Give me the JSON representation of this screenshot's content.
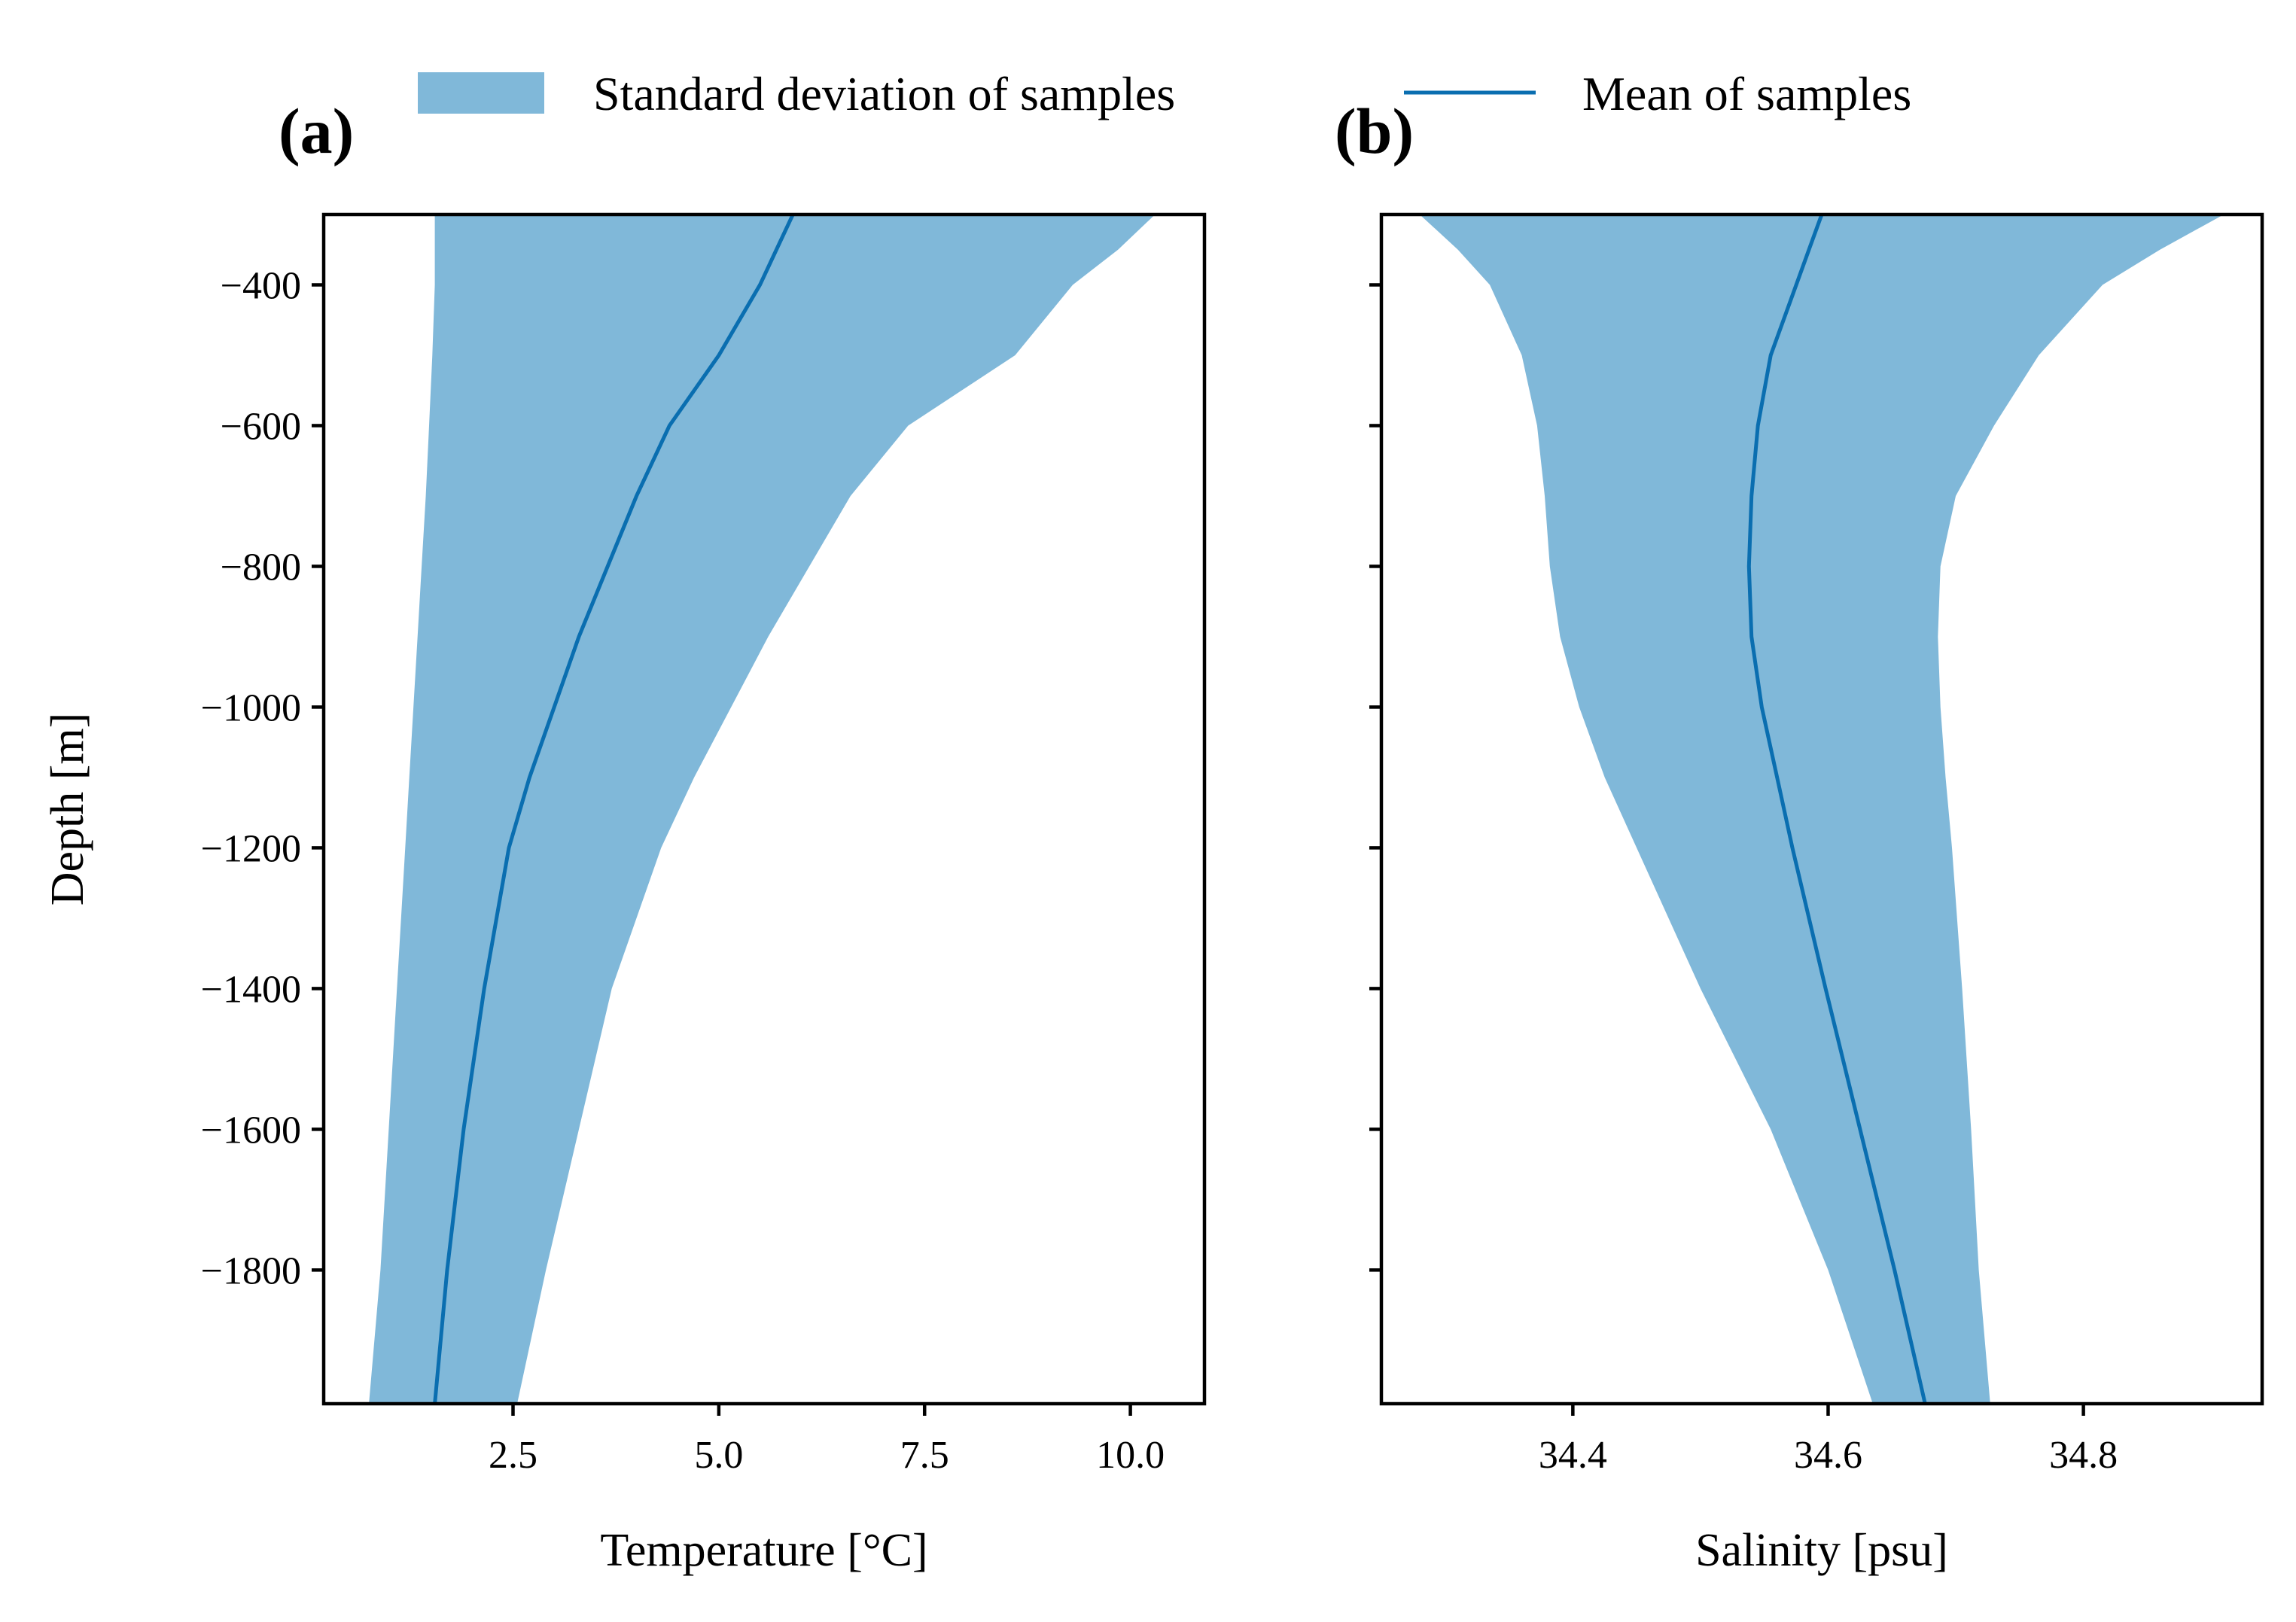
{
  "legend": {
    "std_label": "Standard deviation of samples",
    "mean_label": "Mean of samples"
  },
  "colors": {
    "band": "#80b8d9",
    "mean": "#0a6eb0"
  },
  "chart_data": [
    {
      "type": "area",
      "panel_label": "(a)",
      "xlabel": "Temperature [°C]",
      "ylabel": "Depth [m]",
      "xlim": [
        0.2,
        10.9
      ],
      "ylim": [
        -1990,
        -300
      ],
      "xticks": [
        2.5,
        5.0,
        7.5,
        10.0
      ],
      "xtick_labels": [
        "2.5",
        "5.0",
        "7.5",
        "10.0"
      ],
      "yticks": [
        -400,
        -600,
        -800,
        -1000,
        -1200,
        -1400,
        -1600,
        -1800
      ],
      "ytick_labels": [
        "−400",
        "−600",
        "−800",
        "−1000",
        "−1200",
        "−1400",
        "−1600",
        "−1800"
      ],
      "depth": [
        -300,
        -350,
        -400,
        -500,
        -600,
        -700,
        -800,
        -900,
        -1000,
        -1100,
        -1200,
        -1400,
        -1600,
        -1800,
        -1990
      ],
      "series": [
        {
          "name": "Mean of samples",
          "values": [
            5.9,
            5.7,
            5.5,
            5.0,
            4.4,
            4.0,
            3.65,
            3.3,
            3.0,
            2.7,
            2.45,
            2.15,
            1.9,
            1.7,
            1.55
          ]
        },
        {
          "name": "std_lower",
          "values": [
            1.55,
            1.55,
            1.55,
            1.52,
            1.48,
            1.44,
            1.39,
            1.34,
            1.29,
            1.24,
            1.19,
            1.09,
            0.99,
            0.89,
            0.75
          ]
        },
        {
          "name": "std_upper",
          "values": [
            10.3,
            9.85,
            9.3,
            8.6,
            7.3,
            6.6,
            6.1,
            5.6,
            5.15,
            4.7,
            4.3,
            3.7,
            3.3,
            2.9,
            2.55
          ]
        }
      ]
    },
    {
      "type": "area",
      "panel_label": "(b)",
      "xlabel": "Salinity [psu]",
      "ylabel": "",
      "xlim": [
        34.25,
        34.94
      ],
      "ylim": [
        -1990,
        -300
      ],
      "xticks": [
        34.4,
        34.6,
        34.8
      ],
      "xtick_labels": [
        "34.4",
        "34.6",
        "34.8"
      ],
      "yticks": [
        -400,
        -600,
        -800,
        -1000,
        -1200,
        -1400,
        -1600,
        -1800
      ],
      "ytick_labels": [],
      "depth": [
        -300,
        -350,
        -400,
        -500,
        -600,
        -700,
        -800,
        -900,
        -1000,
        -1100,
        -1200,
        -1400,
        -1600,
        -1800,
        -1990
      ],
      "series": [
        {
          "name": "Mean of samples",
          "values": [
            34.595,
            34.585,
            34.575,
            34.555,
            34.545,
            34.54,
            34.538,
            34.54,
            34.548,
            34.56,
            34.572,
            34.598,
            34.625,
            34.652,
            34.676
          ]
        },
        {
          "name": "std_lower",
          "values": [
            34.28,
            34.31,
            34.335,
            34.36,
            34.372,
            34.378,
            34.382,
            34.39,
            34.405,
            34.425,
            34.45,
            34.5,
            34.555,
            34.6,
            34.635
          ]
        },
        {
          "name": "std_upper",
          "values": [
            34.91,
            34.86,
            34.815,
            34.765,
            34.73,
            34.7,
            34.688,
            34.686,
            34.688,
            34.692,
            34.697,
            34.705,
            34.712,
            34.718,
            34.727
          ]
        }
      ]
    }
  ]
}
